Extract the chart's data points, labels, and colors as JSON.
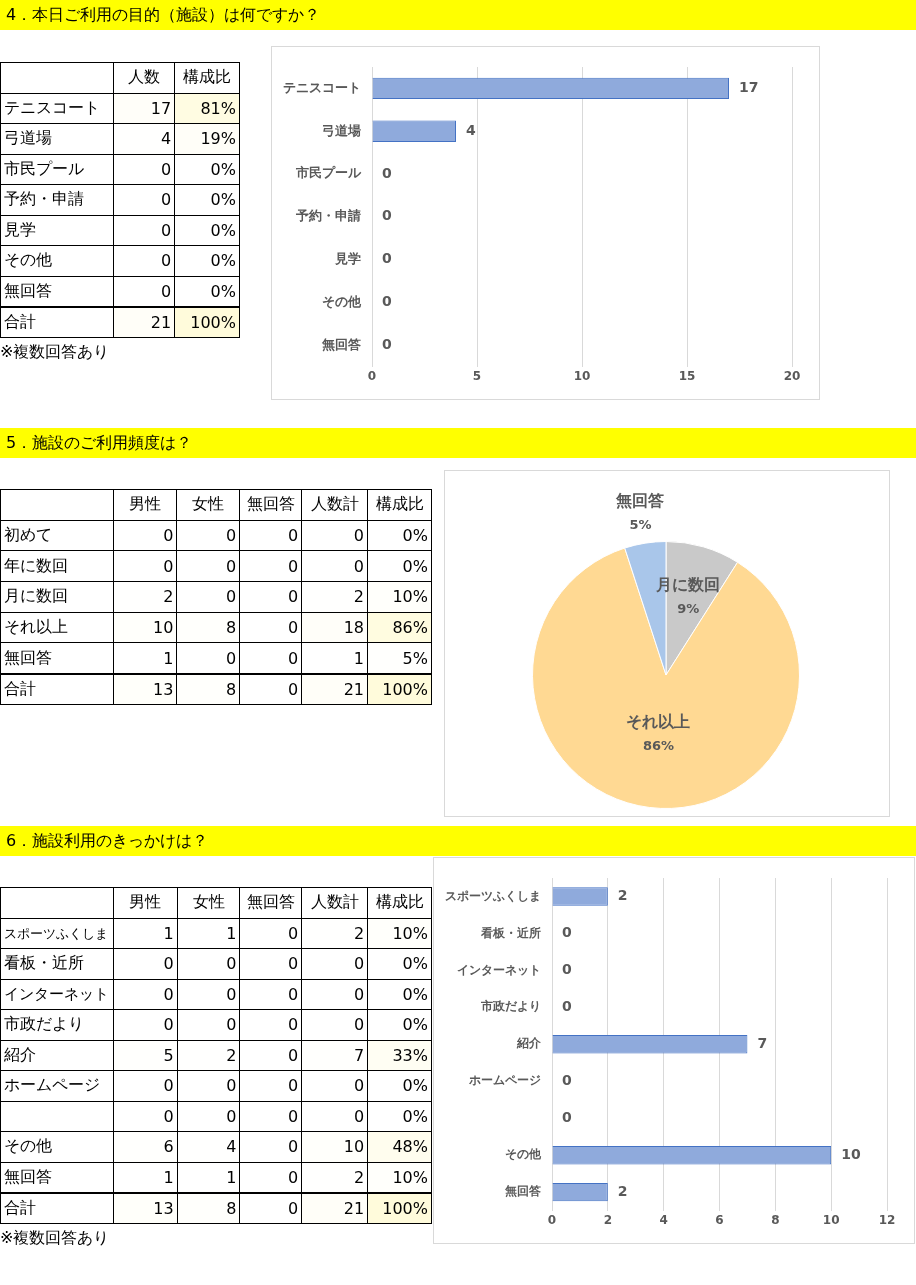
{
  "chart_data": [
    {
      "type": "heatmap",
      "title": "4．本日ご利用の目的（施設）は何ですか？",
      "categories": [
        "人数",
        "構成比"
      ],
      "y_categories": [
        "テニスコート",
        "弓道場",
        "市民プール",
        "予約・申請",
        "見学",
        "その他",
        "無回答",
        "合計"
      ],
      "cells": [
        [
          17,
          81
        ],
        [
          4,
          19
        ],
        [
          0,
          0
        ],
        [
          0,
          0
        ],
        [
          0,
          0
        ],
        [
          0,
          0
        ],
        [
          0,
          0
        ],
        [
          21,
          100
        ]
      ],
      "cell_labels": [
        [
          "17",
          "81%"
        ],
        [
          "4",
          "19%"
        ],
        [
          "0",
          "0%"
        ],
        [
          "0",
          "0%"
        ],
        [
          "0",
          "0%"
        ],
        [
          "0",
          "0%"
        ],
        [
          "0",
          "0%"
        ],
        [
          "21",
          "100%"
        ]
      ],
      "annotations": [
        "※複数回答あり"
      ]
    },
    {
      "type": "bar",
      "orientation": "horizontal",
      "categories": [
        "テニスコート",
        "弓道場",
        "市民プール",
        "予約・申請",
        "見学",
        "その他",
        "無回答"
      ],
      "values": [
        17,
        4,
        0,
        0,
        0,
        0,
        0
      ],
      "color": "#8faadc",
      "xlim": [
        0,
        20
      ],
      "xticks": [
        0,
        5,
        10,
        15,
        20
      ],
      "grid": "x",
      "data_labels": true
    },
    {
      "type": "heatmap",
      "title": "5．施設のご利用頻度は？",
      "categories": [
        "男性",
        "女性",
        "無回答",
        "人数計",
        "構成比"
      ],
      "y_categories": [
        "初めて",
        "年に数回",
        "月に数回",
        "それ以上",
        "無回答",
        "合計"
      ],
      "cells": [
        [
          0,
          0,
          0,
          0,
          0
        ],
        [
          0,
          0,
          0,
          0,
          0
        ],
        [
          2,
          0,
          0,
          2,
          10
        ],
        [
          10,
          8,
          0,
          18,
          86
        ],
        [
          1,
          0,
          0,
          1,
          5
        ],
        [
          13,
          8,
          0,
          21,
          100
        ]
      ],
      "cell_labels": [
        [
          "0",
          "0",
          "0",
          "0",
          "0%"
        ],
        [
          "0",
          "0",
          "0",
          "0",
          "0%"
        ],
        [
          "2",
          "0",
          "0",
          "2",
          "10%"
        ],
        [
          "10",
          "8",
          "0",
          "18",
          "86%"
        ],
        [
          "1",
          "0",
          "0",
          "1",
          "5%"
        ],
        [
          "13",
          "8",
          "0",
          "21",
          "100%"
        ]
      ]
    },
    {
      "type": "pie",
      "categories": [
        "月に数回",
        "それ以上",
        "無回答"
      ],
      "values": [
        9,
        86,
        5
      ],
      "colors": [
        "#c9c9c9",
        "#ffd993",
        "#a9c6ea"
      ],
      "value_labels": [
        "9%",
        "86%",
        "5%"
      ]
    },
    {
      "type": "heatmap",
      "title": "6．施設利用のきっかけは？",
      "categories": [
        "男性",
        "女性",
        "無回答",
        "人数計",
        "構成比"
      ],
      "y_categories": [
        "スポーツふくしま",
        "看板・近所",
        "インターネット",
        "市政だより",
        "紹介",
        "ホームページ",
        null,
        "その他",
        "無回答",
        "合計"
      ],
      "cells": [
        [
          1,
          1,
          0,
          2,
          10
        ],
        [
          0,
          0,
          0,
          0,
          0
        ],
        [
          0,
          0,
          0,
          0,
          0
        ],
        [
          0,
          0,
          0,
          0,
          0
        ],
        [
          5,
          2,
          0,
          7,
          33
        ],
        [
          0,
          0,
          0,
          0,
          0
        ],
        [
          0,
          0,
          0,
          0,
          0
        ],
        [
          6,
          4,
          0,
          10,
          48
        ],
        [
          1,
          1,
          0,
          2,
          10
        ],
        [
          13,
          8,
          0,
          21,
          100
        ]
      ],
      "cell_labels": [
        [
          "1",
          "1",
          "0",
          "2",
          "10%"
        ],
        [
          "0",
          "0",
          "0",
          "0",
          "0%"
        ],
        [
          "0",
          "0",
          "0",
          "0",
          "0%"
        ],
        [
          "0",
          "0",
          "0",
          "0",
          "0%"
        ],
        [
          "5",
          "2",
          "0",
          "7",
          "33%"
        ],
        [
          "0",
          "0",
          "0",
          "0",
          "0%"
        ],
        [
          "0",
          "0",
          "0",
          "0",
          "0%"
        ],
        [
          "6",
          "4",
          "0",
          "10",
          "48%"
        ],
        [
          "1",
          "1",
          "0",
          "2",
          "10%"
        ],
        [
          "13",
          "8",
          "0",
          "21",
          "100%"
        ]
      ],
      "annotations": [
        "※複数回答あり"
      ]
    },
    {
      "type": "bar",
      "orientation": "horizontal",
      "categories": [
        "スポーツふくしま",
        "看板・近所",
        "インターネット",
        "市政だより",
        "紹介",
        "ホームページ",
        null,
        "その他",
        "無回答"
      ],
      "values": [
        2,
        0,
        0,
        0,
        7,
        0,
        0,
        10,
        2
      ],
      "color": "#8faadc",
      "xlim": [
        0,
        12
      ],
      "xticks": [
        0,
        2,
        4,
        6,
        8,
        10,
        12
      ],
      "grid": "x",
      "data_labels": true
    }
  ]
}
